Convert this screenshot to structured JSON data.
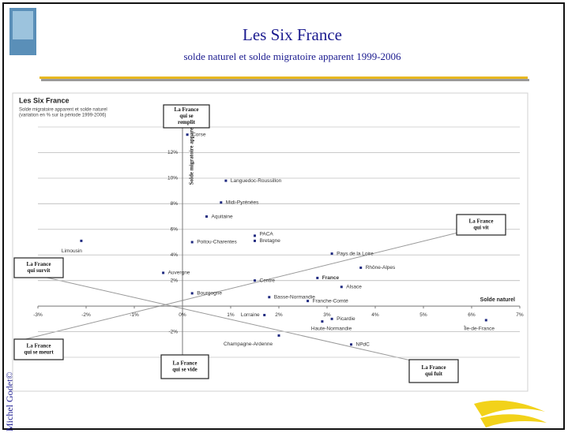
{
  "slide": {
    "title": "Les Six France",
    "subtitle": "solde naturel et solde migratoire apparent 1999-2006",
    "author": "Michel Godet©"
  },
  "chart_data": {
    "type": "scatter",
    "title": "Les Six France",
    "subtitle": [
      "Solde migratoire apparent et solde naturel",
      "(variation en % sur la période 1999-2006)"
    ],
    "x_label": "Solde naturel",
    "y_label": "Solde migratoire apparent",
    "color": "#1f2a80",
    "names": [
      "Corse",
      "Languedoc-Roussillon",
      "Midi-Pyrénées",
      "Aquitaine",
      "PACA",
      "Bretagne",
      "Poitou-Charentes",
      "Limousin",
      "Pays de la Loire",
      "Rhône-Alpes",
      "France",
      "Auvergne",
      "Centre",
      "Alsace",
      "Bourgogne",
      "Basse-Normandie",
      "Franche-Comté",
      "Lorraine",
      "Picardie",
      "Haute-Normandie",
      "Île-de-France",
      "Champagne-Ardenne",
      "NPdC"
    ],
    "x": [
      0.1,
      0.9,
      0.8,
      0.5,
      1.5,
      1.5,
      0.2,
      -2.1,
      3.1,
      3.7,
      2.8,
      -0.4,
      1.5,
      3.3,
      0.2,
      1.8,
      2.6,
      1.7,
      3.1,
      2.9,
      6.3,
      2.0,
      3.5
    ],
    "values": [
      13.4,
      9.8,
      8.1,
      7.0,
      5.5,
      5.1,
      5.0,
      5.1,
      4.1,
      3.0,
      2.2,
      2.6,
      2.0,
      1.5,
      1.0,
      0.7,
      0.4,
      -0.7,
      -1.0,
      -1.2,
      -1.1,
      -2.3,
      -3.0
    ],
    "xlim": [
      -3,
      7
    ],
    "ylim": [
      -4,
      14
    ],
    "xticks": [
      {
        "value": -3,
        "label": "-3%"
      },
      {
        "value": -2,
        "label": "-2%"
      },
      {
        "value": -1,
        "label": "-1%"
      },
      {
        "value": 0,
        "label": "0%"
      },
      {
        "value": 1,
        "label": "1%"
      },
      {
        "value": 2,
        "label": "2%"
      },
      {
        "value": 3,
        "label": "3%"
      },
      {
        "value": 4,
        "label": "4%"
      },
      {
        "value": 5,
        "label": "5%"
      },
      {
        "value": 6,
        "label": "6%"
      },
      {
        "value": 7,
        "label": "7%"
      }
    ],
    "yticks": [
      {
        "value": -2,
        "label": "-2%"
      },
      {
        "value": 2,
        "label": "2%"
      },
      {
        "value": 4,
        "label": "4%"
      },
      {
        "value": 6,
        "label": "6%"
      },
      {
        "value": 8,
        "label": "8%"
      },
      {
        "value": 10,
        "label": "10%"
      },
      {
        "value": 12,
        "label": "12%"
      }
    ],
    "grid": true,
    "annotations": [
      [
        "La France",
        "qui se",
        "remplit"
      ],
      [
        "La France",
        "qui vit"
      ],
      [
        "La France",
        "qui survit"
      ],
      [
        "La France",
        "qui se meurt"
      ],
      [
        "La France",
        "qui se vide"
      ],
      [
        "La France",
        "qui fuit"
      ]
    ]
  }
}
